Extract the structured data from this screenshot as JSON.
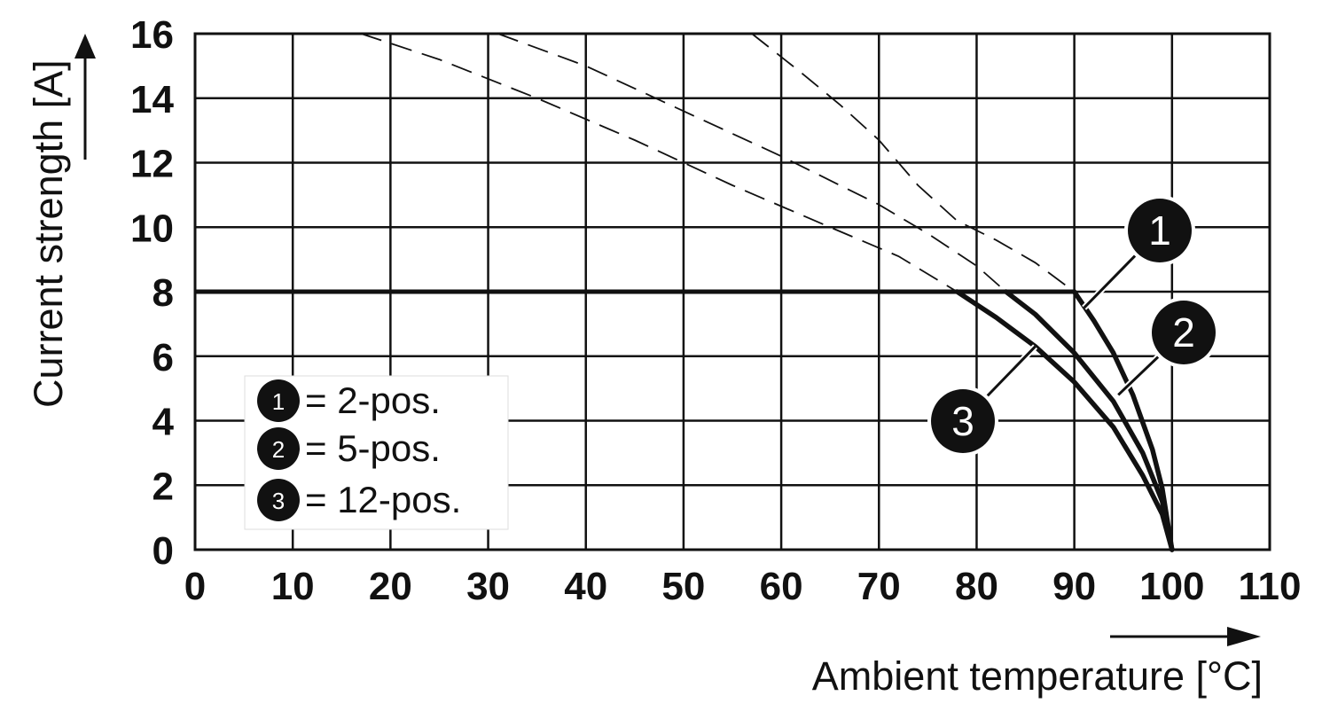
{
  "chart_data": {
    "type": "line",
    "xlabel": "Ambient temperature [°C]",
    "ylabel": "Current strength [A]",
    "xlim": [
      0,
      110
    ],
    "ylim": [
      0,
      16
    ],
    "xticks": [
      0,
      10,
      20,
      30,
      40,
      50,
      60,
      70,
      80,
      90,
      100,
      110
    ],
    "yticks": [
      0,
      2,
      4,
      6,
      8,
      10,
      12,
      14,
      16
    ],
    "x_tick_labels": [
      "0",
      "10",
      "20",
      "30",
      "40",
      "50",
      "60",
      "70",
      "80",
      "90",
      "100",
      "110"
    ],
    "y_tick_labels": [
      "0",
      "2",
      "4",
      "6",
      "8",
      "10",
      "12",
      "14",
      "16"
    ],
    "grid": true,
    "limit_line": {
      "y": 8,
      "x_start": 0
    },
    "series": [
      {
        "marker": "1",
        "name": "2-pos.",
        "dashed": [
          [
            57,
            16
          ],
          [
            62,
            14.8
          ],
          [
            66,
            13.8
          ],
          [
            70,
            12.7
          ],
          [
            74,
            11.3
          ],
          [
            78,
            10.2
          ],
          [
            82,
            9.6
          ],
          [
            86,
            8.9
          ],
          [
            90,
            8
          ]
        ],
        "solid": [
          [
            90,
            8
          ],
          [
            92,
            7.1
          ],
          [
            94,
            6.1
          ],
          [
            96,
            4.8
          ],
          [
            98,
            3.1
          ],
          [
            99,
            1.9
          ],
          [
            100,
            0
          ]
        ]
      },
      {
        "marker": "2",
        "name": "5-pos.",
        "dashed": [
          [
            31,
            16
          ],
          [
            40,
            15
          ],
          [
            50,
            13.6
          ],
          [
            60,
            12.2
          ],
          [
            70,
            10.7
          ],
          [
            75,
            9.8
          ],
          [
            80,
            8.8
          ],
          [
            83,
            8
          ]
        ],
        "solid": [
          [
            83,
            8
          ],
          [
            86,
            7.3
          ],
          [
            90,
            6.1
          ],
          [
            94,
            4.6
          ],
          [
            97,
            3
          ],
          [
            99,
            1.5
          ],
          [
            100,
            0
          ]
        ]
      },
      {
        "marker": "3",
        "name": "12-pos.",
        "dashed": [
          [
            17,
            16
          ],
          [
            25,
            15.2
          ],
          [
            35,
            14
          ],
          [
            45,
            12.7
          ],
          [
            55,
            11.3
          ],
          [
            65,
            10
          ],
          [
            72,
            9.1
          ],
          [
            78,
            8
          ]
        ],
        "solid": [
          [
            78,
            8
          ],
          [
            82,
            7.2
          ],
          [
            86,
            6.3
          ],
          [
            90,
            5.2
          ],
          [
            94,
            3.8
          ],
          [
            97,
            2.3
          ],
          [
            99,
            1.1
          ],
          [
            100,
            0
          ]
        ]
      }
    ],
    "legend": {
      "placement": "bottom-left",
      "entries": [
        {
          "marker": "1",
          "text": "= 2-pos."
        },
        {
          "marker": "2",
          "text": "= 5-pos."
        },
        {
          "marker": "3",
          "text": "= 12-pos."
        }
      ]
    },
    "callouts": [
      {
        "label": "1",
        "series": 0
      },
      {
        "label": "2",
        "series": 1
      },
      {
        "label": "3",
        "series": 2
      }
    ]
  }
}
